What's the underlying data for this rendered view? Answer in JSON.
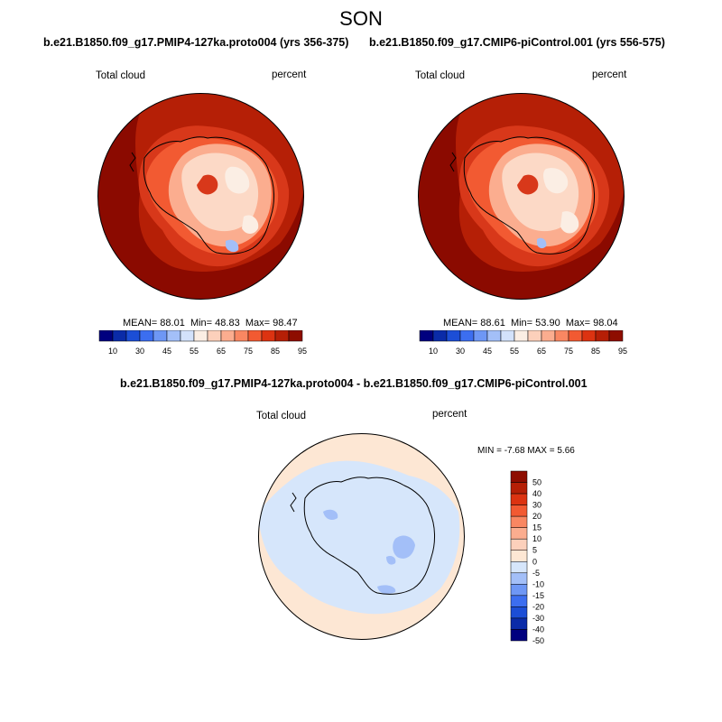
{
  "title": "SON",
  "panels": [
    {
      "title": "b.e21.B1850.f09_g17.PMIP4-127ka.proto004 (yrs 356-375)",
      "variable": "Total cloud",
      "units": "percent",
      "stats": {
        "mean_label": "MEAN=",
        "mean": "88.01",
        "min_label": "Min=",
        "min": "48.83",
        "max_label": "Max=",
        "max": "98.47"
      }
    },
    {
      "title": "b.e21.B1850.f09_g17.CMIP6-piControl.001 (yrs 556-575)",
      "variable": "Total cloud",
      "units": "percent",
      "stats": {
        "mean_label": "MEAN=",
        "mean": "88.61",
        "min_label": "Min=",
        "min": "53.90",
        "max_label": "Max=",
        "max": "98.04"
      }
    }
  ],
  "abs_colorbar": {
    "labels": [
      "10",
      "30",
      "45",
      "55",
      "65",
      "75",
      "85",
      "95"
    ],
    "colors": [
      "#00007f",
      "#0a2ba8",
      "#1c4ed6",
      "#3c6ef0",
      "#6e97f5",
      "#a3bff8",
      "#d3e2fb",
      "#fbeee4",
      "#fcd0bb",
      "#fbad8f",
      "#f98762",
      "#f25a32",
      "#dc3311",
      "#b51f06",
      "#8e0d00"
    ]
  },
  "diff_panel": {
    "title": "b.e21.B1850.f09_g17.PMIP4-127ka.proto004 - b.e21.B1850.f09_g17.CMIP6-piControl.001",
    "variable": "Total cloud",
    "units": "percent",
    "minmax_text": "MIN =  -7.68 MAX =   5.66"
  },
  "diff_colorbar": {
    "labels": [
      "50",
      "40",
      "30",
      "20",
      "15",
      "10",
      "5",
      "0",
      "-5",
      "-10",
      "-15",
      "-20",
      "-30",
      "-40",
      "-50"
    ],
    "colors": [
      "#8e0d00",
      "#b51f06",
      "#dc3311",
      "#f25a32",
      "#f98762",
      "#fbad8f",
      "#fcd0bb",
      "#fde7d4",
      "#d6e6fb",
      "#a3bff8",
      "#6e97f5",
      "#3c6ef0",
      "#1c4ed6",
      "#0a2ba8",
      "#00007f"
    ]
  },
  "colors": {
    "ocean_dark": "#8b0a00",
    "ocean_mid": "#b51f06",
    "ring_red": "#d8381a",
    "coast_orange": "#f25a32",
    "ice_light": "#fbad8f",
    "ice_pale": "#fcd9c6",
    "ice_white": "#fbeee4",
    "low_blue": "#a3bff8",
    "diff_pos": "#fde7d4",
    "diff_neg": "#d6e6fb",
    "diff_neg2": "#a3bff8"
  }
}
